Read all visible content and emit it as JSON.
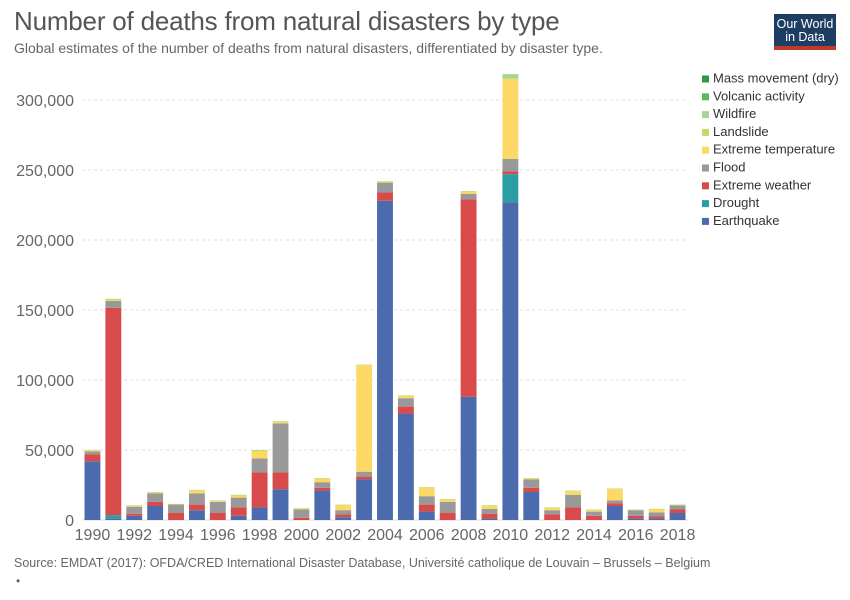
{
  "header": {
    "title": "Number of deaths from natural disasters by type",
    "subtitle": "Global estimates of the number of deaths from natural disasters, differentiated by disaster type.",
    "logo_line1": "Our World",
    "logo_line2": "in Data"
  },
  "footer": {
    "source": "Source: EMDAT (2017): OFDA/CRED International Disaster Database, Université catholique de Louvain – Brussels – Belgium",
    "dot": "•"
  },
  "chart_data": {
    "type": "bar",
    "stacked": true,
    "title": "Number of deaths from natural disasters by type",
    "xlabel": "",
    "ylabel": "",
    "ylim": [
      0,
      320000
    ],
    "yticks": [
      0,
      50000,
      100000,
      150000,
      200000,
      250000,
      300000
    ],
    "ytick_labels": [
      "0",
      "50,000",
      "100,000",
      "150,000",
      "200,000",
      "250,000",
      "300,000"
    ],
    "xtick_labels": [
      "1990",
      "1992",
      "1994",
      "1996",
      "1998",
      "2000",
      "2002",
      "2004",
      "2006",
      "2008",
      "2010",
      "2012",
      "2014",
      "2016",
      "2018"
    ],
    "grid": true,
    "legend_position": "right",
    "categories": [
      "1990",
      "1991",
      "1992",
      "1993",
      "1994",
      "1995",
      "1996",
      "1997",
      "1998",
      "1999",
      "2000",
      "2001",
      "2002",
      "2003",
      "2004",
      "2005",
      "2006",
      "2007",
      "2008",
      "2009",
      "2010",
      "2011",
      "2012",
      "2013",
      "2014",
      "2015",
      "2016",
      "2017",
      "2018"
    ],
    "series": [
      {
        "name": "Earthquake",
        "color": "#4c6bae",
        "values": [
          42000,
          1000,
          3000,
          10000,
          0,
          7000,
          0,
          3000,
          9000,
          22000,
          0,
          21000,
          2000,
          29000,
          228000,
          76000,
          6000,
          0,
          88000,
          1000,
          227000,
          20000,
          0,
          0,
          0,
          10000,
          1000,
          1000,
          5000
        ]
      },
      {
        "name": "Drought",
        "color": "#2a9ea5",
        "values": [
          0,
          2500,
          0,
          0,
          0,
          0,
          0,
          0,
          0,
          0,
          0,
          0,
          0,
          0,
          0,
          0,
          0,
          0,
          0,
          0,
          20000,
          0,
          0,
          0,
          0,
          0,
          0,
          0,
          0
        ]
      },
      {
        "name": "Extreme weather",
        "color": "#d94a4a",
        "values": [
          5000,
          148000,
          1500,
          3000,
          5000,
          4000,
          5000,
          6000,
          25000,
          12000,
          1500,
          2000,
          2000,
          2000,
          6000,
          5000,
          5000,
          5000,
          141000,
          3500,
          2000,
          3000,
          4000,
          9000,
          3000,
          2000,
          2000,
          1500,
          2500
        ]
      },
      {
        "name": "Flood",
        "color": "#999999",
        "values": [
          2000,
          5000,
          5000,
          6000,
          6000,
          8000,
          8000,
          7000,
          10000,
          35000,
          6000,
          4000,
          3000,
          3500,
          7000,
          6000,
          6000,
          8000,
          4000,
          3500,
          9000,
          6000,
          3000,
          9000,
          3000,
          2000,
          4000,
          3000,
          3000
        ]
      },
      {
        "name": "Extreme temperature",
        "color": "#fcd965",
        "values": [
          500,
          500,
          500,
          500,
          0,
          2000,
          500,
          1500,
          5000,
          1000,
          500,
          2500,
          3500,
          76000,
          500,
          1500,
          6000,
          1500,
          1500,
          2000,
          57000,
          500,
          1500,
          2500,
          1000,
          8000,
          0,
          2000,
          0
        ]
      },
      {
        "name": "Landslide",
        "color": "#c7d964",
        "values": [
          500,
          1000,
          500,
          500,
          500,
          500,
          500,
          500,
          1000,
          500,
          500,
          500,
          500,
          500,
          500,
          500,
          500,
          500,
          500,
          500,
          500,
          500,
          500,
          500,
          500,
          500,
          500,
          500,
          500
        ]
      },
      {
        "name": "Wildfire",
        "color": "#a7d39c",
        "values": [
          0,
          0,
          0,
          0,
          0,
          0,
          0,
          0,
          0,
          0,
          0,
          0,
          0,
          0,
          0,
          0,
          0,
          0,
          0,
          0,
          3000,
          0,
          0,
          0,
          0,
          0,
          0,
          0,
          0
        ]
      },
      {
        "name": "Volcanic activity",
        "color": "#5cb85c",
        "values": [
          0,
          0,
          0,
          0,
          0,
          0,
          0,
          0,
          0,
          0,
          0,
          0,
          0,
          0,
          0,
          0,
          0,
          0,
          0,
          0,
          0,
          0,
          0,
          0,
          0,
          0,
          0,
          0,
          0
        ]
      },
      {
        "name": "Mass movement (dry)",
        "color": "#2e9a47",
        "values": [
          0,
          0,
          0,
          0,
          0,
          0,
          0,
          0,
          0,
          0,
          0,
          0,
          0,
          0,
          0,
          0,
          0,
          0,
          0,
          0,
          0,
          0,
          0,
          0,
          0,
          0,
          0,
          0,
          0
        ]
      }
    ]
  }
}
